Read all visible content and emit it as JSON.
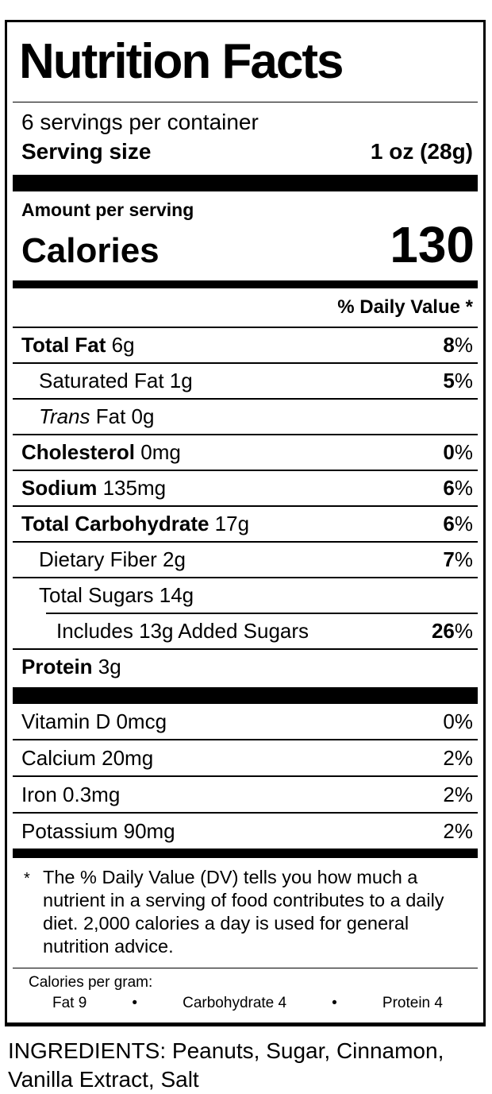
{
  "colors": {
    "ink": "#000000",
    "paper": "#ffffff"
  },
  "label": {
    "title": "Nutrition Facts",
    "servings_per_container": "6 servings per container",
    "serving_size_label": "Serving size",
    "serving_size_value": "1 oz (28g)",
    "amount_per_serving": "Amount per serving",
    "calories_label": "Calories",
    "calories_value": "130",
    "daily_value_header": "% Daily Value *",
    "rows": [
      {
        "bold": "Total Fat",
        "text": " 6g",
        "dv": "8%",
        "dv_bold": true,
        "indent": 0
      },
      {
        "text": "Saturated Fat 1g",
        "dv": "5%",
        "dv_bold": true,
        "indent": 1
      },
      {
        "italic": "Trans",
        "text": " Fat 0g",
        "indent": 1
      },
      {
        "bold": "Cholesterol",
        "text": " 0mg",
        "dv": "0%",
        "dv_bold": true,
        "indent": 0
      },
      {
        "bold": "Sodium",
        "text": " 135mg",
        "dv": "6%",
        "dv_bold": true,
        "indent": 0
      },
      {
        "bold": "Total Carbohydrate",
        "text": " 17g",
        "dv": "6%",
        "dv_bold": true,
        "indent": 0
      },
      {
        "text": "Dietary Fiber 2g",
        "dv": "7%",
        "dv_bold": true,
        "indent": 1
      },
      {
        "text": "Total Sugars 14g",
        "indent": 1
      },
      {
        "text": "Includes 13g Added Sugars",
        "dv": "26%",
        "dv_bold": true,
        "indent": 2,
        "sep_indent": true
      },
      {
        "bold": "Protein",
        "text": " 3g",
        "indent": 0
      }
    ],
    "vitamins": [
      {
        "text": "Vitamin D 0mcg",
        "dv": "0%",
        "dv_bold": false,
        "indent": 0
      },
      {
        "text": "Calcium 20mg",
        "dv": "2%",
        "dv_bold": false,
        "indent": 0
      },
      {
        "text": "Iron 0.3mg",
        "dv": "2%",
        "dv_bold": false,
        "indent": 0
      },
      {
        "text": "Potassium 90mg",
        "dv": "2%",
        "dv_bold": false,
        "indent": 0
      }
    ],
    "footnote_marker": "*",
    "footnote": "The % Daily Value (DV) tells you how much a nutrient in a serving of food contributes to a daily diet. 2,000 calories a day is used for general nutrition advice.",
    "calories_per_gram": {
      "label": "Calories per gram:",
      "bullet": "•",
      "items": [
        "Fat 9",
        "Carbohydrate 4",
        "Protein 4"
      ]
    }
  },
  "ingredients": "INGREDIENTS: Peanuts, Sugar, Cinnamon, Vanilla Extract, Salt"
}
